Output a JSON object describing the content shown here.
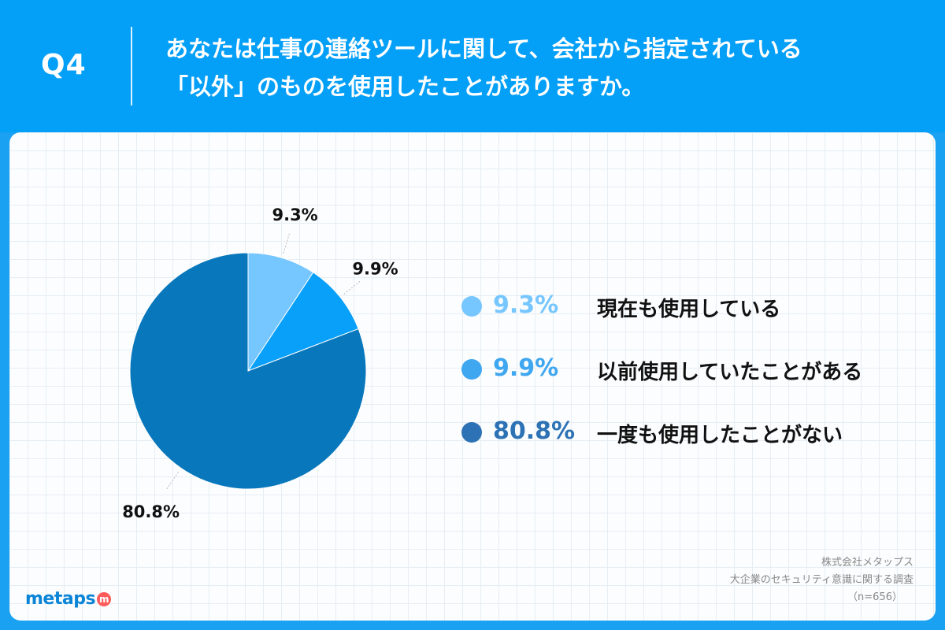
{
  "header": {
    "qnum": "Q4",
    "question_line1": "あなたは仕事の連絡ツールに関して、会社から指定されている",
    "question_line2": "「以外」のものを使用したことがありますか。"
  },
  "chart_data": {
    "type": "pie",
    "categories": [
      "現在も使用している",
      "以前使用していたことがある",
      "一度も使用したことがない"
    ],
    "values": [
      9.3,
      9.9,
      80.8
    ],
    "labels": [
      "9.3%",
      "9.9%",
      "80.8%"
    ],
    "colors": [
      "#76c6ff",
      "#08a0f8",
      "#0877bb"
    ],
    "legend_colors": [
      "#76c6ff",
      "#3fa6f0",
      "#2d72b4"
    ],
    "legend_position": "right"
  },
  "footer": {
    "company": "株式会社メタップス",
    "survey": "大企業のセキュリティ意識に関する調査",
    "sample": "（n=656）",
    "logo_text": "metaps",
    "logo_mark": "m"
  }
}
